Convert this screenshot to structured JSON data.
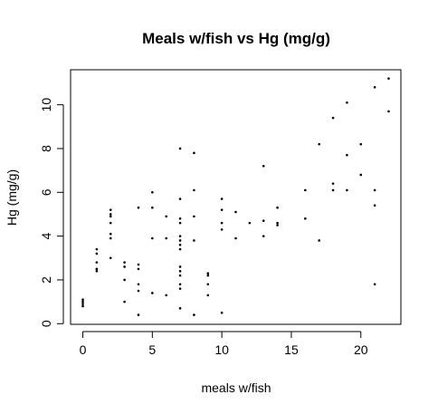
{
  "chart_data": {
    "type": "scatter",
    "title": "Meals w/fish vs Hg (mg/g)",
    "xlabel": "meals w/fish",
    "ylabel": "Hg (mg/g)",
    "xlim": [
      -0.88,
      22.88
    ],
    "ylim": [
      -0.03,
      11.6
    ],
    "xticks": [
      0,
      5,
      10,
      15,
      20
    ],
    "yticks": [
      0,
      2,
      4,
      6,
      8,
      10
    ],
    "grid": false,
    "legend": "none",
    "points": [
      [
        0,
        0.8
      ],
      [
        0,
        0.9
      ],
      [
        0,
        1.0
      ],
      [
        0,
        1.1
      ],
      [
        1,
        2.4
      ],
      [
        1,
        2.5
      ],
      [
        1,
        2.5
      ],
      [
        1,
        2.8
      ],
      [
        1,
        3.2
      ],
      [
        1,
        3.4
      ],
      [
        2,
        3.0
      ],
      [
        2,
        3.9
      ],
      [
        2,
        4.1
      ],
      [
        2,
        4.6
      ],
      [
        2,
        4.9
      ],
      [
        2,
        5.0
      ],
      [
        2,
        5.2
      ],
      [
        3,
        1.0
      ],
      [
        3,
        2.0
      ],
      [
        3,
        2.6
      ],
      [
        3,
        2.8
      ],
      [
        4,
        0.4
      ],
      [
        4,
        1.5
      ],
      [
        4,
        1.8
      ],
      [
        4,
        2.5
      ],
      [
        4,
        2.7
      ],
      [
        4,
        5.3
      ],
      [
        5,
        1.4
      ],
      [
        5,
        3.9
      ],
      [
        5,
        5.3
      ],
      [
        5,
        6.0
      ],
      [
        6,
        1.3
      ],
      [
        6,
        3.9
      ],
      [
        6,
        4.9
      ],
      [
        7,
        0.7
      ],
      [
        7,
        1.6
      ],
      [
        7,
        1.8
      ],
      [
        7,
        2.2
      ],
      [
        7,
        2.4
      ],
      [
        7,
        2.6
      ],
      [
        7,
        3.4
      ],
      [
        7,
        3.6
      ],
      [
        7,
        3.8
      ],
      [
        7,
        4.0
      ],
      [
        7,
        4.6
      ],
      [
        7,
        4.8
      ],
      [
        7,
        5.7
      ],
      [
        7,
        8.0
      ],
      [
        8,
        0.4
      ],
      [
        8,
        3.8
      ],
      [
        8,
        4.9
      ],
      [
        8,
        6.1
      ],
      [
        8,
        7.8
      ],
      [
        9,
        1.3
      ],
      [
        9,
        1.8
      ],
      [
        9,
        2.2
      ],
      [
        9,
        2.3
      ],
      [
        10,
        0.5
      ],
      [
        10,
        4.3
      ],
      [
        10,
        4.6
      ],
      [
        10,
        5.2
      ],
      [
        10,
        5.7
      ],
      [
        11,
        3.9
      ],
      [
        11,
        5.1
      ],
      [
        12,
        4.6
      ],
      [
        13,
        4.0
      ],
      [
        13,
        4.7
      ],
      [
        13,
        7.2
      ],
      [
        14,
        4.5
      ],
      [
        14,
        4.6
      ],
      [
        14,
        5.3
      ],
      [
        16,
        4.8
      ],
      [
        16,
        6.1
      ],
      [
        17,
        3.8
      ],
      [
        17,
        8.2
      ],
      [
        18,
        6.1
      ],
      [
        18,
        6.4
      ],
      [
        18,
        9.4
      ],
      [
        19,
        6.1
      ],
      [
        19,
        7.7
      ],
      [
        19,
        10.1
      ],
      [
        20,
        6.8
      ],
      [
        20,
        8.2
      ],
      [
        21,
        1.8
      ],
      [
        21,
        5.4
      ],
      [
        21,
        6.1
      ],
      [
        21,
        10.8
      ],
      [
        22,
        9.7
      ],
      [
        22,
        11.2
      ]
    ]
  }
}
